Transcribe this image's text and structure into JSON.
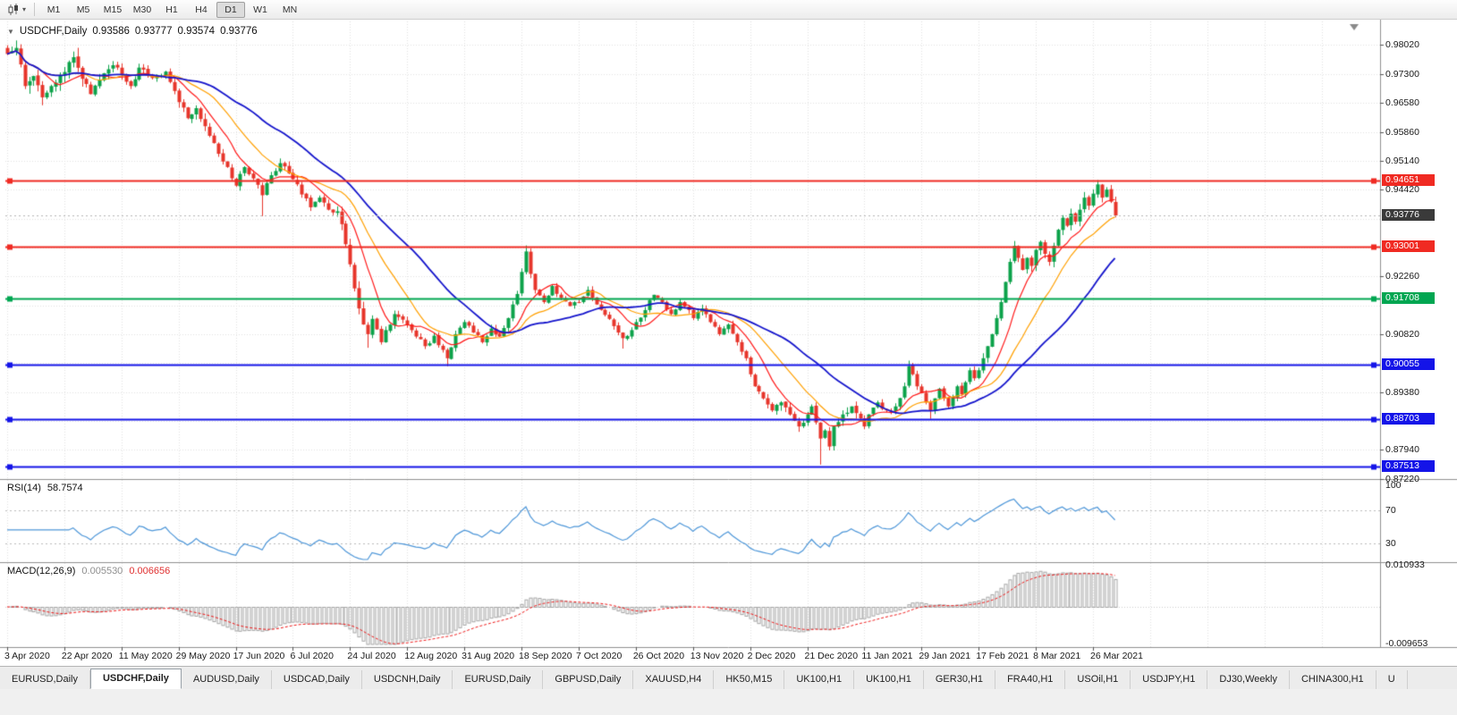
{
  "toolbar": {
    "timeframes": [
      "M1",
      "M5",
      "M15",
      "M30",
      "H1",
      "H4",
      "D1",
      "W1",
      "MN"
    ],
    "active_timeframe": "D1"
  },
  "icons": {
    "chart_dropdown_caret": "▾",
    "symbol_caret": "▼"
  },
  "header": {
    "symbol": "USDCHF,Daily",
    "open": "0.93586",
    "high": "0.93777",
    "low": "0.93574",
    "close": "0.93776"
  },
  "chart_data": {
    "type": "candlestick",
    "symbol": "USDCHF",
    "timeframe": "Daily",
    "x_axis": {
      "labels": [
        "3 Apr 2020",
        "22 Apr 2020",
        "11 May 2020",
        "29 May 2020",
        "17 Jun 2020",
        "6 Jul 2020",
        "24 Jul 2020",
        "12 Aug 2020",
        "31 Aug 2020",
        "18 Sep 2020",
        "7 Oct 2020",
        "26 Oct 2020",
        "13 Nov 2020",
        "2 Dec 2020",
        "21 Dec 2020",
        "11 Jan 2021",
        "29 Jan 2021",
        "17 Feb 2021",
        "8 Mar 2021",
        "26 Mar 2021"
      ],
      "days_per_label": 13
    },
    "y_axis": {
      "min": 0.8721,
      "max": 0.9861,
      "grid_ticks": [
        0.9802,
        0.973,
        0.9658,
        0.9586,
        0.9514,
        0.9442,
        0.937,
        0.9298,
        0.9226,
        0.9154,
        0.9082,
        0.901,
        0.8938,
        0.8866,
        0.8794,
        0.8722
      ],
      "visible_ticks": [
        0.9802,
        0.973,
        0.9658,
        0.9586,
        0.9514,
        0.9442,
        0.9226,
        0.9082,
        0.8938,
        0.8794,
        0.8722
      ],
      "badges": [
        {
          "price": 0.94651,
          "text": "0.94651",
          "bg": "#f02a22"
        },
        {
          "price": 0.93776,
          "text": "0.93776",
          "bg": "#3a3a3a",
          "current": true
        },
        {
          "price": 0.93001,
          "text": "0.93001",
          "bg": "#f02a22"
        },
        {
          "price": 0.91708,
          "text": "0.91708",
          "bg": "#00a651"
        },
        {
          "price": 0.90055,
          "text": "0.90055",
          "bg": "#1414e8"
        },
        {
          "price": 0.88703,
          "text": "0.88703",
          "bg": "#1414e8"
        },
        {
          "price": 0.87513,
          "text": "0.87513",
          "bg": "#1414e8"
        }
      ]
    },
    "current_price": 0.93776,
    "horizontal_lines": [
      {
        "price": 0.94651,
        "color": "#f02a22"
      },
      {
        "price": 0.93001,
        "color": "#f02a22"
      },
      {
        "price": 0.91708,
        "color": "#00a651"
      },
      {
        "price": 0.90055,
        "color": "#1414e8"
      },
      {
        "price": 0.88703,
        "color": "#1414e8"
      },
      {
        "price": 0.87513,
        "color": "#1414e8"
      }
    ],
    "moving_averages": [
      {
        "name": "ma-fast",
        "period": 9,
        "color": "#ff1a1a",
        "width": 1.2
      },
      {
        "name": "ma-medium",
        "period": 18,
        "color": "#ffa000",
        "width": 1.2
      },
      {
        "name": "ma-slow",
        "period": 34,
        "color": "#1515cc",
        "width": 1.8
      }
    ],
    "candles": {
      "count": 253,
      "up_color": "#0ca24a",
      "down_color": "#e7352b",
      "anchors": [
        [
          0,
          0.978
        ],
        [
          2,
          0.9795
        ],
        [
          4,
          0.97
        ],
        [
          6,
          0.9725
        ],
        [
          8,
          0.9672
        ],
        [
          10,
          0.97
        ],
        [
          13,
          0.9735
        ],
        [
          15,
          0.9772
        ],
        [
          17,
          0.9718
        ],
        [
          19,
          0.968
        ],
        [
          21,
          0.9716
        ],
        [
          24,
          0.9752
        ],
        [
          26,
          0.973
        ],
        [
          28,
          0.97
        ],
        [
          30,
          0.9746
        ],
        [
          33,
          0.972
        ],
        [
          36,
          0.9736
        ],
        [
          39,
          0.966
        ],
        [
          41,
          0.962
        ],
        [
          43,
          0.9645
        ],
        [
          45,
          0.96
        ],
        [
          47,
          0.9558
        ],
        [
          49,
          0.9512
        ],
        [
          52,
          0.9452
        ],
        [
          54,
          0.9498
        ],
        [
          56,
          0.947
        ],
        [
          58,
          0.9428
        ],
        [
          60,
          0.9478
        ],
        [
          62,
          0.9508
        ],
        [
          65,
          0.9468
        ],
        [
          67,
          0.943
        ],
        [
          69,
          0.9398
        ],
        [
          71,
          0.9422
        ],
        [
          73,
          0.9392
        ],
        [
          75,
          0.9388
        ],
        [
          76,
          0.9356
        ],
        [
          77,
          0.9306
        ],
        [
          78,
          0.9256
        ],
        [
          79,
          0.9196
        ],
        [
          80,
          0.9146
        ],
        [
          81,
          0.9106
        ],
        [
          82,
          0.9082
        ],
        [
          83,
          0.912
        ],
        [
          84,
          0.9094
        ],
        [
          85,
          0.9062
        ],
        [
          86,
          0.9092
        ],
        [
          88,
          0.9132
        ],
        [
          91,
          0.9106
        ],
        [
          93,
          0.9076
        ],
        [
          95,
          0.9052
        ],
        [
          97,
          0.9078
        ],
        [
          100,
          0.9022
        ],
        [
          102,
          0.9082
        ],
        [
          104,
          0.9112
        ],
        [
          106,
          0.9086
        ],
        [
          108,
          0.9062
        ],
        [
          110,
          0.9096
        ],
        [
          112,
          0.9076
        ],
        [
          114,
          0.9122
        ],
        [
          116,
          0.9182
        ],
        [
          118,
          0.9288
        ],
        [
          119,
          0.9232
        ],
        [
          120,
          0.9192
        ],
        [
          122,
          0.9162
        ],
        [
          124,
          0.9202
        ],
        [
          126,
          0.9172
        ],
        [
          128,
          0.9152
        ],
        [
          130,
          0.9162
        ],
        [
          132,
          0.9192
        ],
        [
          134,
          0.9156
        ],
        [
          136,
          0.913
        ],
        [
          138,
          0.9102
        ],
        [
          140,
          0.9072
        ],
        [
          142,
          0.9092
        ],
        [
          143,
          0.9112
        ],
        [
          145,
          0.9142
        ],
        [
          147,
          0.918
        ],
        [
          149,
          0.9162
        ],
        [
          151,
          0.9132
        ],
        [
          153,
          0.9162
        ],
        [
          155,
          0.9142
        ],
        [
          156,
          0.9122
        ],
        [
          158,
          0.9146
        ],
        [
          160,
          0.9112
        ],
        [
          162,
          0.9082
        ],
        [
          164,
          0.9106
        ],
        [
          166,
          0.9062
        ],
        [
          168,
          0.9022
        ],
        [
          169,
          0.8982
        ],
        [
          170,
          0.8952
        ],
        [
          172,
          0.8922
        ],
        [
          174,
          0.8892
        ],
        [
          176,
          0.8912
        ],
        [
          178,
          0.8882
        ],
        [
          180,
          0.8852
        ],
        [
          182,
          0.8882
        ],
        [
          183,
          0.8902
        ],
        [
          184,
          0.8862
        ],
        [
          185,
          0.8822
        ],
        [
          186,
          0.8842
        ],
        [
          187,
          0.8802
        ],
        [
          188,
          0.8852
        ],
        [
          190,
          0.8882
        ],
        [
          192,
          0.8902
        ],
        [
          194,
          0.8872
        ],
        [
          195,
          0.8852
        ],
        [
          196,
          0.8882
        ],
        [
          198,
          0.8912
        ],
        [
          200,
          0.8892
        ],
        [
          202,
          0.8902
        ],
        [
          204,
          0.8952
        ],
        [
          205,
          0.9002
        ],
        [
          206,
          0.8982
        ],
        [
          207,
          0.8952
        ],
        [
          208,
          0.8935
        ],
        [
          209,
          0.8912
        ],
        [
          210,
          0.8892
        ],
        [
          211,
          0.8922
        ],
        [
          212,
          0.8946
        ],
        [
          213,
          0.8922
        ],
        [
          214,
          0.8902
        ],
        [
          215,
          0.8926
        ],
        [
          216,
          0.8952
        ],
        [
          217,
          0.8932
        ],
        [
          218,
          0.8962
        ],
        [
          219,
          0.8992
        ],
        [
          220,
          0.8972
        ],
        [
          221,
          0.8992
        ],
        [
          222,
          0.9022
        ],
        [
          223,
          0.9052
        ],
        [
          224,
          0.9082
        ],
        [
          225,
          0.9122
        ],
        [
          226,
          0.9162
        ],
        [
          227,
          0.9212
        ],
        [
          228,
          0.9262
        ],
        [
          229,
          0.9302
        ],
        [
          230,
          0.9272
        ],
        [
          231,
          0.9242
        ],
        [
          232,
          0.9272
        ],
        [
          233,
          0.9252
        ],
        [
          234,
          0.9292
        ],
        [
          235,
          0.9312
        ],
        [
          236,
          0.9282
        ],
        [
          237,
          0.9262
        ],
        [
          238,
          0.9302
        ],
        [
          239,
          0.9342
        ],
        [
          240,
          0.9372
        ],
        [
          241,
          0.9352
        ],
        [
          242,
          0.9382
        ],
        [
          243,
          0.9362
        ],
        [
          244,
          0.9392
        ],
        [
          245,
          0.9422
        ],
        [
          246,
          0.9402
        ],
        [
          247,
          0.9432
        ],
        [
          248,
          0.9455
        ],
        [
          249,
          0.9422
        ],
        [
          250,
          0.9442
        ],
        [
          251,
          0.9412
        ],
        [
          252,
          0.93776
        ]
      ],
      "spikes": {
        "2": {
          "h": 0.9806
        },
        "15": {
          "h": 0.9786
        },
        "58": {
          "l": 0.9376
        },
        "62": {
          "h": 0.9516
        },
        "82": {
          "l": 0.9048
        },
        "100": {
          "l": 0.9002
        },
        "118": {
          "h": 0.9303
        },
        "140": {
          "l": 0.9046
        },
        "185": {
          "l": 0.8757
        },
        "205": {
          "h": 0.9016
        },
        "210": {
          "l": 0.8871
        },
        "248": {
          "h": 0.9465
        }
      },
      "volatility": [
        [
          0,
          20,
          0.0036
        ],
        [
          21,
          50,
          0.0024
        ],
        [
          51,
          74,
          0.002
        ],
        [
          75,
          85,
          0.003
        ],
        [
          86,
          115,
          0.0016
        ],
        [
          116,
          121,
          0.0026
        ],
        [
          122,
          168,
          0.0016
        ],
        [
          169,
          195,
          0.0024
        ],
        [
          196,
          221,
          0.0016
        ],
        [
          222,
          252,
          0.0024
        ]
      ]
    },
    "indicators": {
      "rsi": {
        "label": "RSI(14)",
        "value": "58.7574",
        "period": 14,
        "color": "#4e97d9",
        "levels": [
          70,
          30
        ],
        "axis": [
          {
            "text": "100",
            "value": 100
          },
          {
            "text": "70",
            "value": 70
          },
          {
            "text": "30",
            "value": 30
          }
        ]
      },
      "macd": {
        "label": "MACD(12,26,9)",
        "value_macd": "0.005530",
        "value_signal": "0.006656",
        "fast": 12,
        "slow": 26,
        "signal": 9,
        "axis_top": "0.010933",
        "axis_bottom": "-0.009653",
        "scale_max": 0.0112,
        "scale_min": -0.01,
        "histogram_color": "#a6a6a6",
        "signal_color": "#f01818"
      }
    }
  },
  "tabs": {
    "items": [
      "EURUSD,Daily",
      "USDCHF,Daily",
      "AUDUSD,Daily",
      "USDCAD,Daily",
      "USDCNH,Daily",
      "EURUSD,Daily",
      "GBPUSD,Daily",
      "XAUUSD,H4",
      "HK50,M15",
      "UK100,H1",
      "UK100,H1",
      "GER30,H1",
      "FRA40,H1",
      "USOil,H1",
      "USDJPY,H1",
      "DJ30,Weekly",
      "CHINA300,H1",
      "U"
    ],
    "active_index": 1
  }
}
